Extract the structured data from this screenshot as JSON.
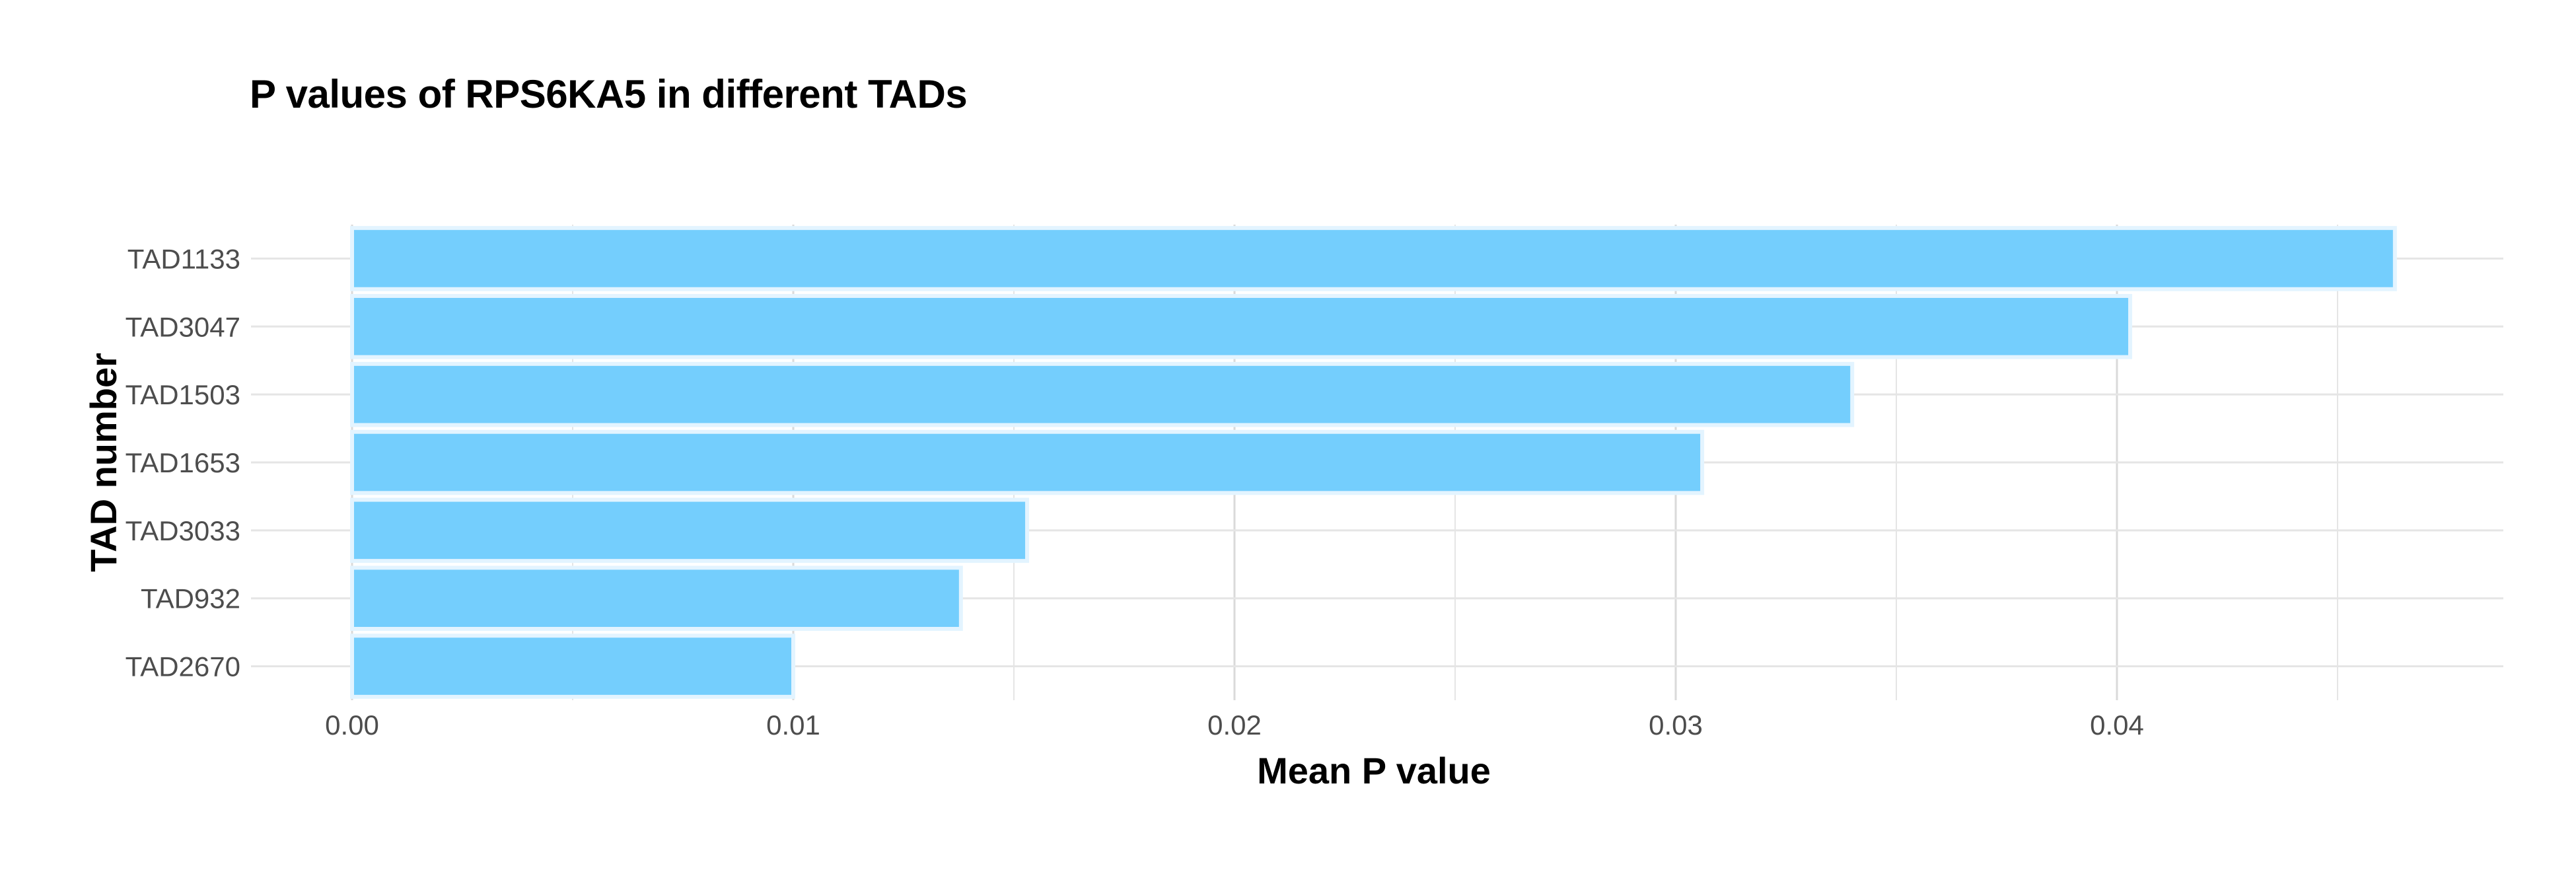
{
  "chart_data": {
    "type": "bar",
    "orientation": "horizontal",
    "title": "P values of RPS6KA5 in different TADs",
    "xlabel": "Mean P value",
    "ylabel": "TAD number",
    "categories": [
      "TAD1133",
      "TAD3047",
      "TAD1503",
      "TAD1653",
      "TAD3033",
      "TAD932",
      "TAD2670"
    ],
    "values": [
      0.0463,
      0.0403,
      0.034,
      0.0306,
      0.0153,
      0.0138,
      0.01
    ],
    "xlim": [
      -0.0023,
      0.0487
    ],
    "xticks": [
      0.0,
      0.01,
      0.02,
      0.03,
      0.04
    ],
    "xtick_labels": [
      "0.00",
      "0.01",
      "0.02",
      "0.03",
      "0.04"
    ],
    "grid": true,
    "bar_color": "#74cefd",
    "bar_edge_color": "#e3f4ff",
    "grid_color": "#e5e5e5"
  }
}
